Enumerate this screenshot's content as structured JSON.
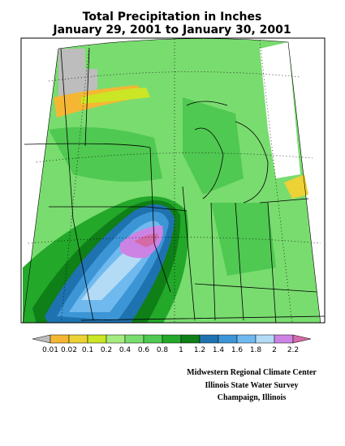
{
  "title": [
    "Total Precipitation in Inches",
    "January 29, 2001  to January 30, 2001"
  ],
  "legend": {
    "ticks": [
      0.01,
      0.02,
      0.1,
      0.2,
      0.4,
      0.6,
      0.8,
      1,
      1.2,
      1.4,
      1.6,
      1.8,
      2,
      2.2
    ],
    "colors": [
      "#bdbdbd",
      "#f5b733",
      "#ecd235",
      "#cbe624",
      "#a4ec7f",
      "#79dc6f",
      "#4fc951",
      "#23a82a",
      "#0f7f17",
      "#1f72b0",
      "#3c96d6",
      "#6fb9ef",
      "#b3dbf5",
      "#cd83e4",
      "#d56aa8"
    ]
  },
  "credits": [
    "Midwestern Regional Climate Center",
    "Illinois State Water Survey",
    "Champaign, Illinois"
  ]
}
